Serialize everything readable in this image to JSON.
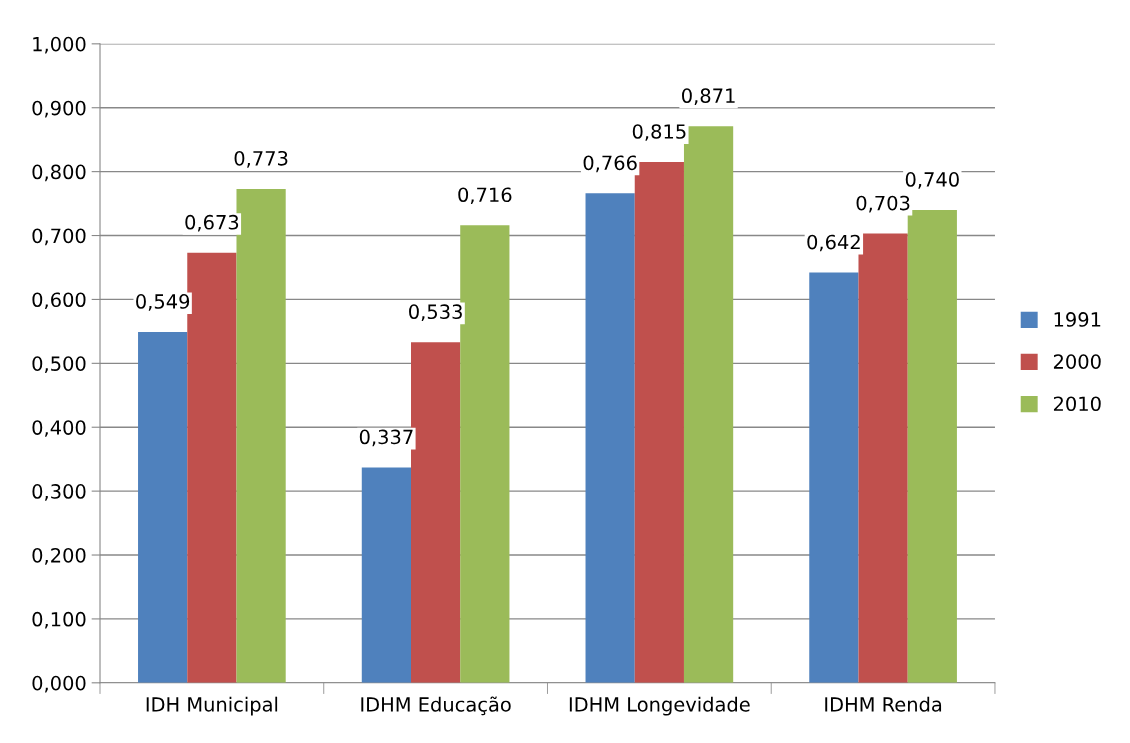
{
  "chart_data": {
    "type": "bar",
    "categories": [
      "IDH Municipal",
      "IDHM Educação",
      "IDHM Longevidade",
      "IDHM Renda"
    ],
    "series": [
      {
        "name": "1991",
        "color": "#4f81bd",
        "values": [
          0.549,
          0.337,
          0.766,
          0.642
        ],
        "value_labels": [
          "0,549",
          "0,337",
          "0,766",
          "0,642"
        ]
      },
      {
        "name": "2000",
        "color": "#c0504d",
        "values": [
          0.673,
          0.533,
          0.815,
          0.703
        ],
        "value_labels": [
          "0,673",
          "0,533",
          "0,815",
          "0,703"
        ]
      },
      {
        "name": "2010",
        "color": "#9bbb59",
        "values": [
          0.773,
          0.716,
          0.871,
          0.74
        ],
        "value_labels": [
          "0,773",
          "0,716",
          "0,871",
          "0,740"
        ]
      }
    ],
    "ylim": [
      0,
      1
    ],
    "yticks": [
      {
        "value": 0,
        "label": "0,000"
      },
      {
        "value": 0.1,
        "label": "0,100"
      },
      {
        "value": 0.2,
        "label": "0,200"
      },
      {
        "value": 0.3,
        "label": "0,300"
      },
      {
        "value": 0.4,
        "label": "0,400"
      },
      {
        "value": 0.5,
        "label": "0,500"
      },
      {
        "value": 0.6,
        "label": "0,600"
      },
      {
        "value": 0.7,
        "label": "0,700"
      },
      {
        "value": 0.8,
        "label": "0,800"
      },
      {
        "value": 0.9,
        "label": "0,900"
      },
      {
        "value": 1,
        "label": "1,000"
      }
    ],
    "grid": "y",
    "legend": "right"
  }
}
